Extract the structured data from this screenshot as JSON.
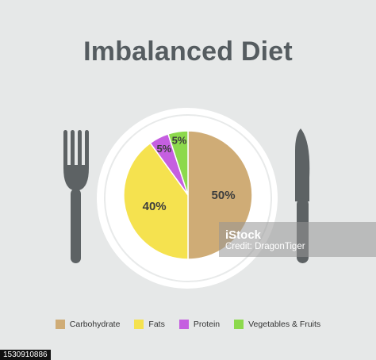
{
  "chart_data": {
    "type": "pie",
    "title": "Imbalanced Diet",
    "slices": [
      {
        "label": "Carbohydrate",
        "value": 50,
        "color": "#cfac76",
        "display": "50%"
      },
      {
        "label": "Fats",
        "value": 40,
        "color": "#f5e24f",
        "display": "40%"
      },
      {
        "label": "Protein",
        "value": 5,
        "color": "#c55fe0",
        "display": "5%"
      },
      {
        "label": "Vegetables & Fruits",
        "value": 5,
        "color": "#8cd94c",
        "display": "5%"
      }
    ],
    "legend_position": "bottom"
  },
  "icons": {
    "left": "fork-icon",
    "right": "knife-icon",
    "plate": "plate-icon"
  },
  "colors": {
    "background": "#e6e8e8",
    "utensil": "#5d6264",
    "plate": "#ffffff"
  },
  "watermark": {
    "brand": "iStock",
    "credit": "Credit: DragonTiger"
  },
  "stock_id": "1530910886"
}
